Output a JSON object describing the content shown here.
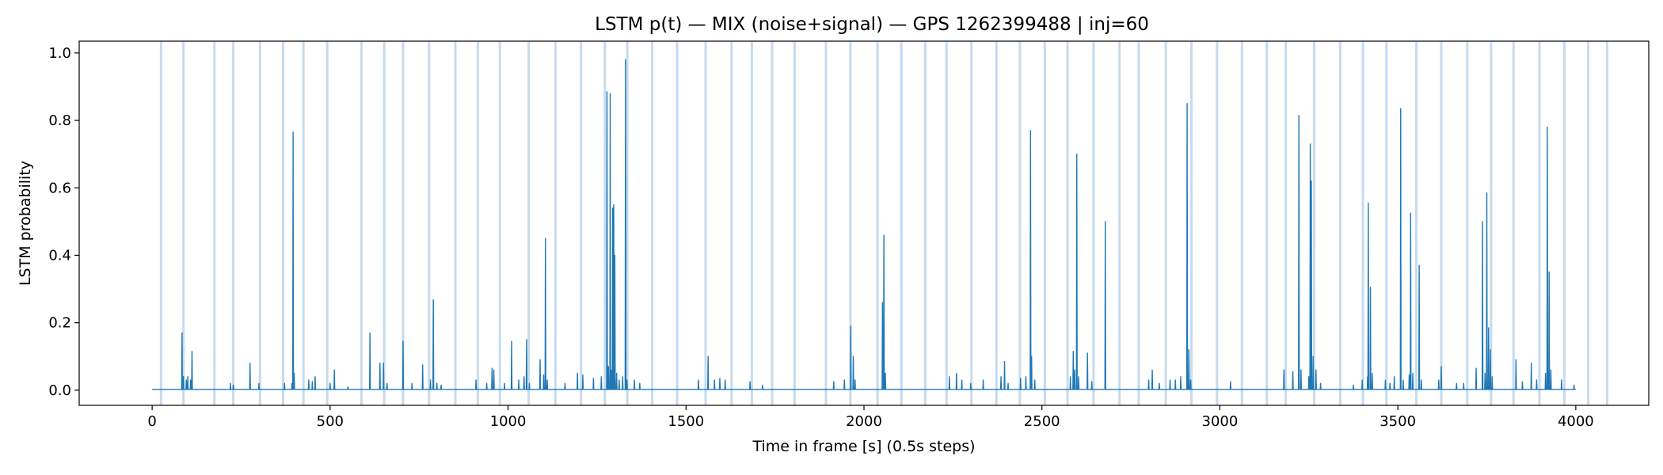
{
  "chart_data": {
    "type": "line",
    "title": "LSTM p(t) — MIX (noise+signal) — GPS 1262399488 | inj=60",
    "xlabel": "Time in frame [s] (0.5s steps)",
    "ylabel": "LSTM probability",
    "xlim": [
      -205,
      4205
    ],
    "ylim": [
      -0.045,
      1.035
    ],
    "x_ticks": [
      0,
      500,
      1000,
      1500,
      2000,
      2500,
      3000,
      3500,
      4000
    ],
    "y_ticks": [
      0.0,
      0.2,
      0.4,
      0.6,
      0.8,
      1.0
    ],
    "x_tick_labels": [
      "0",
      "500",
      "1000",
      "1500",
      "2000",
      "2500",
      "3000",
      "3500",
      "4000"
    ],
    "y_tick_labels": [
      "0.0",
      "0.2",
      "0.4",
      "0.6",
      "0.8",
      "1.0"
    ],
    "grid": false,
    "legend": "none",
    "colors": {
      "line": "#1f77b4",
      "injection_band": "#c6dbef"
    },
    "injection_times": [
      25,
      88,
      175,
      228,
      303,
      368,
      425,
      492,
      588,
      652,
      705,
      778,
      852,
      915,
      977,
      1058,
      1133,
      1205,
      1272,
      1335,
      1405,
      1475,
      1555,
      1628,
      1685,
      1742,
      1805,
      1893,
      1962,
      2038,
      2105,
      2172,
      2232,
      2302,
      2372,
      2438,
      2508,
      2572,
      2645,
      2718,
      2772,
      2848,
      2920,
      2992,
      3062,
      3132,
      3185,
      3265,
      3338,
      3402,
      3468,
      3552,
      3622,
      3695,
      3762,
      3825,
      3898,
      3968,
      4035,
      4088
    ],
    "baseline": 0.002,
    "x_range": [
      0,
      4000
    ],
    "peaks": [
      [
        84,
        0.17
      ],
      [
        88,
        0.04
      ],
      [
        96,
        0.03
      ],
      [
        100,
        0.04
      ],
      [
        108,
        0.03
      ],
      [
        112,
        0.115
      ],
      [
        220,
        0.02
      ],
      [
        228,
        0.015
      ],
      [
        275,
        0.08
      ],
      [
        300,
        0.02
      ],
      [
        372,
        0.02
      ],
      [
        393,
        0.02
      ],
      [
        396,
        0.765
      ],
      [
        399,
        0.05
      ],
      [
        440,
        0.03
      ],
      [
        450,
        0.025
      ],
      [
        458,
        0.04
      ],
      [
        500,
        0.02
      ],
      [
        512,
        0.06
      ],
      [
        550,
        0.01
      ],
      [
        612,
        0.17
      ],
      [
        640,
        0.08
      ],
      [
        650,
        0.08
      ],
      [
        660,
        0.02
      ],
      [
        705,
        0.145
      ],
      [
        730,
        0.02
      ],
      [
        760,
        0.075
      ],
      [
        782,
        0.03
      ],
      [
        790,
        0.268
      ],
      [
        800,
        0.02
      ],
      [
        812,
        0.015
      ],
      [
        910,
        0.03
      ],
      [
        940,
        0.02
      ],
      [
        955,
        0.065
      ],
      [
        960,
        0.06
      ],
      [
        990,
        0.02
      ],
      [
        1010,
        0.145
      ],
      [
        1030,
        0.03
      ],
      [
        1045,
        0.04
      ],
      [
        1052,
        0.15
      ],
      [
        1060,
        0.02
      ],
      [
        1090,
        0.09
      ],
      [
        1100,
        0.045
      ],
      [
        1105,
        0.45
      ],
      [
        1110,
        0.03
      ],
      [
        1160,
        0.02
      ],
      [
        1195,
        0.05
      ],
      [
        1210,
        0.045
      ],
      [
        1240,
        0.035
      ],
      [
        1262,
        0.04
      ],
      [
        1278,
        0.885
      ],
      [
        1282,
        0.07
      ],
      [
        1287,
        0.88
      ],
      [
        1291,
        0.06
      ],
      [
        1294,
        0.54
      ],
      [
        1297,
        0.55
      ],
      [
        1300,
        0.4
      ],
      [
        1305,
        0.05
      ],
      [
        1312,
        0.03
      ],
      [
        1322,
        0.04
      ],
      [
        1330,
        0.98
      ],
      [
        1334,
        0.03
      ],
      [
        1355,
        0.03
      ],
      [
        1370,
        0.02
      ],
      [
        1535,
        0.03
      ],
      [
        1562,
        0.1
      ],
      [
        1580,
        0.03
      ],
      [
        1595,
        0.035
      ],
      [
        1610,
        0.03
      ],
      [
        1680,
        0.025
      ],
      [
        1715,
        0.015
      ],
      [
        1915,
        0.025
      ],
      [
        1945,
        0.03
      ],
      [
        1963,
        0.19
      ],
      [
        1970,
        0.1
      ],
      [
        1975,
        0.03
      ],
      [
        2052,
        0.26
      ],
      [
        2056,
        0.46
      ],
      [
        2060,
        0.05
      ],
      [
        2240,
        0.04
      ],
      [
        2260,
        0.05
      ],
      [
        2275,
        0.03
      ],
      [
        2300,
        0.02
      ],
      [
        2335,
        0.03
      ],
      [
        2385,
        0.04
      ],
      [
        2395,
        0.085
      ],
      [
        2405,
        0.02
      ],
      [
        2440,
        0.035
      ],
      [
        2455,
        0.04
      ],
      [
        2468,
        0.77
      ],
      [
        2471,
        0.1
      ],
      [
        2480,
        0.03
      ],
      [
        2580,
        0.04
      ],
      [
        2588,
        0.115
      ],
      [
        2592,
        0.06
      ],
      [
        2598,
        0.7
      ],
      [
        2603,
        0.04
      ],
      [
        2628,
        0.11
      ],
      [
        2640,
        0.025
      ],
      [
        2678,
        0.5
      ],
      [
        2800,
        0.03
      ],
      [
        2810,
        0.06
      ],
      [
        2830,
        0.02
      ],
      [
        2860,
        0.03
      ],
      [
        2875,
        0.03
      ],
      [
        2890,
        0.04
      ],
      [
        2908,
        0.85
      ],
      [
        2913,
        0.12
      ],
      [
        2918,
        0.03
      ],
      [
        3030,
        0.025
      ],
      [
        3180,
        0.06
      ],
      [
        3205,
        0.055
      ],
      [
        3222,
        0.815
      ],
      [
        3228,
        0.06
      ],
      [
        3250,
        0.04
      ],
      [
        3254,
        0.73
      ],
      [
        3257,
        0.62
      ],
      [
        3262,
        0.1
      ],
      [
        3270,
        0.06
      ],
      [
        3283,
        0.02
      ],
      [
        3375,
        0.015
      ],
      [
        3400,
        0.03
      ],
      [
        3415,
        0.04
      ],
      [
        3417,
        0.555
      ],
      [
        3423,
        0.305
      ],
      [
        3428,
        0.05
      ],
      [
        3465,
        0.03
      ],
      [
        3478,
        0.02
      ],
      [
        3490,
        0.04
      ],
      [
        3508,
        0.835
      ],
      [
        3515,
        0.03
      ],
      [
        3532,
        0.045
      ],
      [
        3536,
        0.525
      ],
      [
        3542,
        0.05
      ],
      [
        3560,
        0.37
      ],
      [
        3566,
        0.03
      ],
      [
        3615,
        0.03
      ],
      [
        3622,
        0.07
      ],
      [
        3665,
        0.02
      ],
      [
        3685,
        0.02
      ],
      [
        3720,
        0.065
      ],
      [
        3738,
        0.5
      ],
      [
        3745,
        0.05
      ],
      [
        3750,
        0.585
      ],
      [
        3755,
        0.185
      ],
      [
        3760,
        0.12
      ],
      [
        3765,
        0.04
      ],
      [
        3832,
        0.09
      ],
      [
        3850,
        0.025
      ],
      [
        3875,
        0.08
      ],
      [
        3890,
        0.03
      ],
      [
        3915,
        0.05
      ],
      [
        3920,
        0.78
      ],
      [
        3925,
        0.35
      ],
      [
        3930,
        0.06
      ],
      [
        3960,
        0.03
      ],
      [
        3995,
        0.015
      ]
    ]
  }
}
